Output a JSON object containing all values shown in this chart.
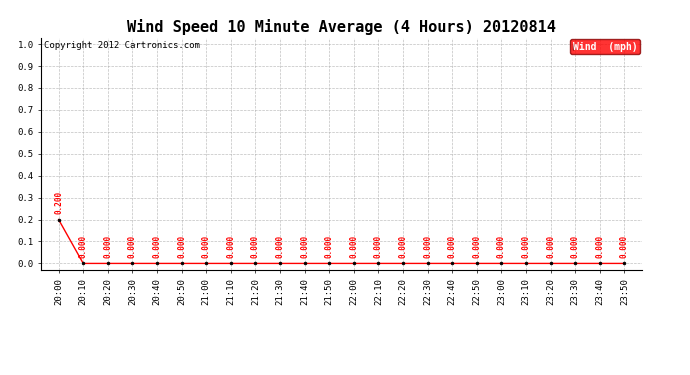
{
  "title": "Wind Speed 10 Minute Average (4 Hours) 20120814",
  "copyright": "Copyright 2012 Cartronics.com",
  "legend_label": "Wind  (mph)",
  "x_labels": [
    "20:00",
    "20:10",
    "20:20",
    "20:30",
    "20:40",
    "20:50",
    "21:00",
    "21:10",
    "21:20",
    "21:30",
    "21:40",
    "21:50",
    "22:00",
    "22:10",
    "22:20",
    "22:30",
    "22:40",
    "22:50",
    "23:00",
    "23:10",
    "23:20",
    "23:30",
    "23:40",
    "23:50"
  ],
  "y_values": [
    0.2,
    0.0,
    0.0,
    0.0,
    0.0,
    0.0,
    0.0,
    0.0,
    0.0,
    0.0,
    0.0,
    0.0,
    0.0,
    0.0,
    0.0,
    0.0,
    0.0,
    0.0,
    0.0,
    0.0,
    0.0,
    0.0,
    0.0,
    0.0
  ],
  "line_color": "#ff0000",
  "background_color": "#ffffff",
  "grid_color": "#b0b0b0",
  "ylim_min": 0.0,
  "ylim_max": 1.0,
  "yticks": [
    0.0,
    0.1,
    0.2,
    0.3,
    0.4,
    0.5,
    0.6,
    0.7,
    0.8,
    0.9,
    1.0
  ],
  "title_fontsize": 11,
  "label_fontsize": 6.5,
  "annotation_fontsize": 5.5,
  "copyright_fontsize": 6.5,
  "legend_fontsize": 7,
  "marker_color": "#000000",
  "marker_size": 2.0
}
